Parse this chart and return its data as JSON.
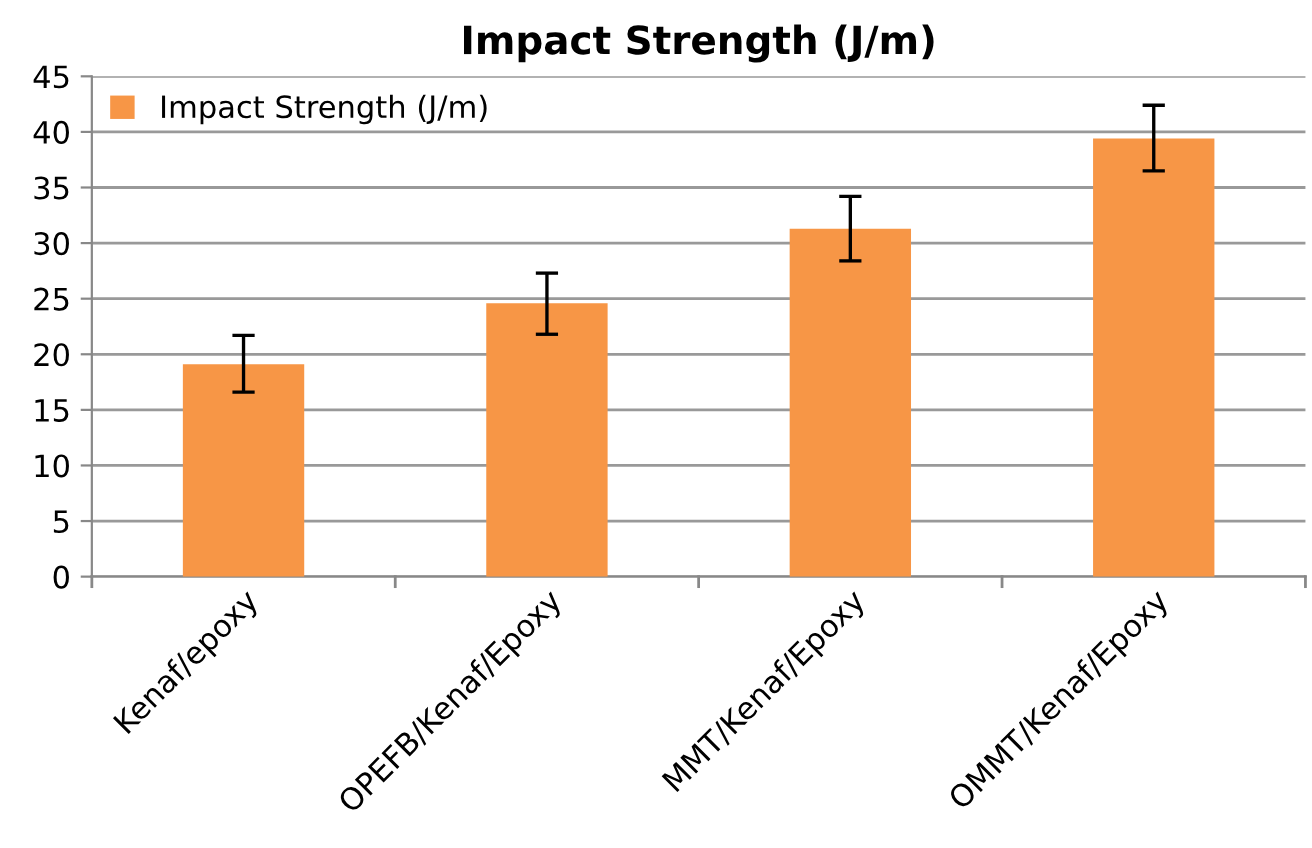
{
  "chart_data": {
    "type": "bar",
    "title": "Impact Strength (J/m)",
    "categories": [
      "Kenaf/epoxy",
      "OPEFB/Kenaf/Epoxy",
      "MMT/Kenaf/Epoxy",
      "OMMT/Kenaf/Epoxy"
    ],
    "series": [
      {
        "name": "Impact Strength (J/m)",
        "color": "#f79646",
        "values": [
          19.1,
          24.6,
          31.3,
          39.4
        ],
        "errors": [
          [
            16.6,
            21.7
          ],
          [
            21.8,
            27.3
          ],
          [
            28.4,
            34.2
          ],
          [
            36.5,
            42.4
          ]
        ]
      }
    ],
    "ylim": [
      0,
      45
    ],
    "yticks": [
      0,
      5,
      10,
      15,
      20,
      25,
      30,
      35,
      40,
      45
    ],
    "grid": "y",
    "legend": "top left"
  }
}
